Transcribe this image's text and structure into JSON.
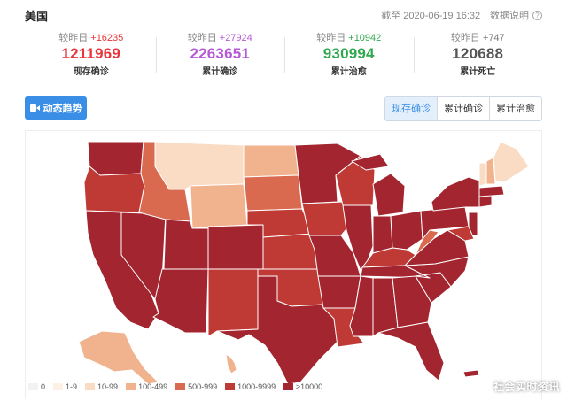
{
  "header": {
    "country": "美国",
    "asof_label": "截至 2020-06-19 16:32",
    "separator": "|",
    "data_note": "数据说明",
    "info_glyph": "?"
  },
  "stats": [
    {
      "delta_prefix": "较昨日",
      "delta": "+16235",
      "value": "1211969",
      "label": "现存确诊",
      "color": "#e8343a",
      "delta_color": "#e8343a"
    },
    {
      "delta_prefix": "较昨日",
      "delta": "+27924",
      "value": "2263651",
      "label": "累计确诊",
      "color": "#b55ad4",
      "delta_color": "#b55ad4"
    },
    {
      "delta_prefix": "较昨日",
      "delta": "+10942",
      "value": "930994",
      "label": "累计治愈",
      "color": "#2fa84f",
      "delta_color": "#2fa84f"
    },
    {
      "delta_prefix": "较昨日",
      "delta": "+747",
      "value": "120688",
      "label": "累计死亡",
      "color": "#555555",
      "delta_color": "#777777"
    }
  ],
  "toolbar": {
    "trend_label": "动态趋势",
    "tabs": [
      {
        "label": "现存确诊",
        "active": true
      },
      {
        "label": "累计确诊",
        "active": false
      },
      {
        "label": "累计治愈",
        "active": false
      }
    ]
  },
  "map": {
    "colors": {
      "c0": "#f2f2f2",
      "c1": "#fdf0e4",
      "c2": "#fadcc4",
      "c3": "#f0b38e",
      "c4": "#d9694f",
      "c5": "#bf3a34",
      "c6": "#a32530"
    }
  },
  "legend": [
    {
      "label": "0",
      "color": "#f2f2f2"
    },
    {
      "label": "1-9",
      "color": "#fdf0e4"
    },
    {
      "label": "10-99",
      "color": "#fadcc4"
    },
    {
      "label": "100-499",
      "color": "#f0b38e"
    },
    {
      "label": "500-999",
      "color": "#d9694f"
    },
    {
      "label": "1000-9999",
      "color": "#bf3a34"
    },
    {
      "label": "≥10000",
      "color": "#a32530"
    }
  ],
  "watermark": "社会实时资讯"
}
